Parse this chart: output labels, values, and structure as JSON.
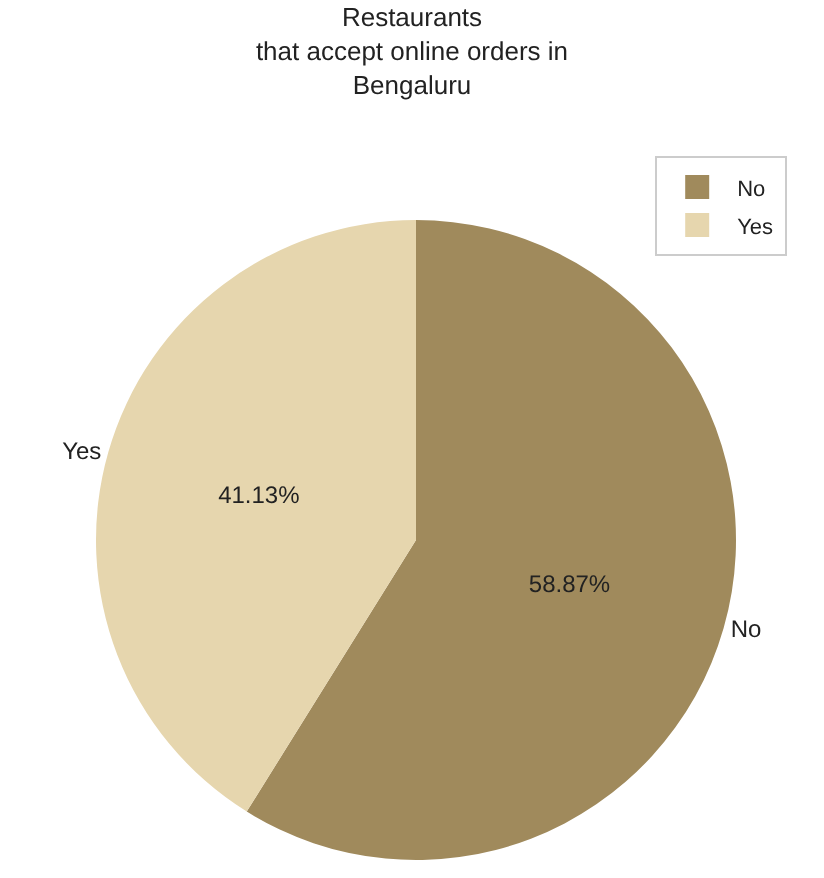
{
  "chart_data": {
    "type": "pie",
    "title": "Restaurants\nthat accept online orders in\nBengaluru",
    "categories": [
      "No",
      "Yes"
    ],
    "values": [
      58.87,
      41.13
    ],
    "value_labels": [
      "58.87%",
      "41.13%"
    ],
    "colors": [
      "#a08a5c",
      "#e6d6ae"
    ],
    "legend": "top right"
  }
}
